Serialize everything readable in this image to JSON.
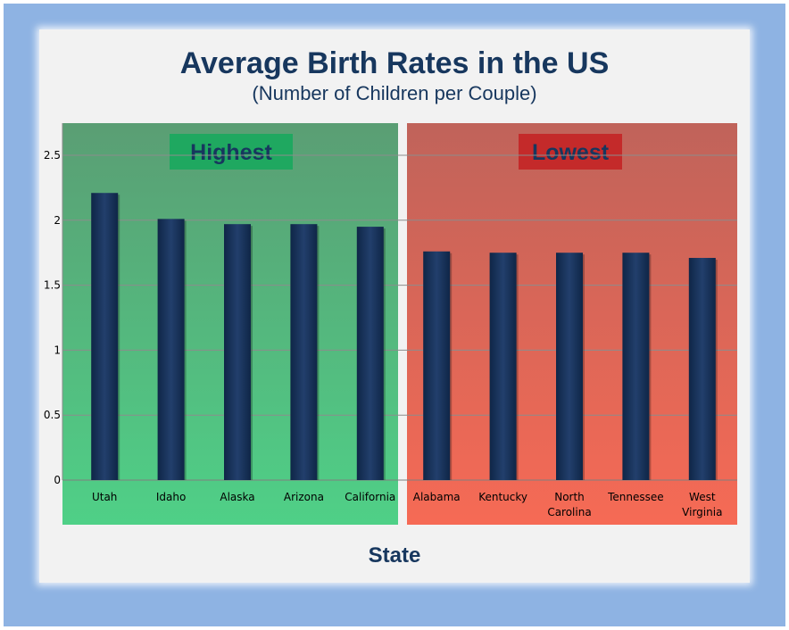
{
  "title": "Average Birth Rates in the US",
  "subtitle": "(Number of Children per Couple)",
  "chart_data": {
    "type": "bar",
    "title": "Average Birth Rates in the US",
    "subtitle": "(Number of Children per Couple)",
    "xlabel": "State",
    "ylabel": "",
    "ylim": [
      0,
      2.5
    ],
    "yticks": [
      "0",
      "0.5",
      "1",
      "1.5",
      "2",
      "2.5"
    ],
    "grid": true,
    "categories": [
      "Utah",
      "Idaho",
      "Alaska",
      "Arizona",
      "California",
      "Alabama",
      "Kentucky",
      "North Carolina",
      "Tennessee",
      "West Virginia"
    ],
    "category_lines": [
      [
        "Utah"
      ],
      [
        "Idaho"
      ],
      [
        "Alaska"
      ],
      [
        "Arizona"
      ],
      [
        "California"
      ],
      [
        "Alabama"
      ],
      [
        "Kentucky"
      ],
      [
        "North",
        "Carolina"
      ],
      [
        "Tennessee"
      ],
      [
        "West",
        "Virginia"
      ]
    ],
    "values": [
      2.21,
      2.01,
      1.97,
      1.97,
      1.95,
      1.76,
      1.75,
      1.75,
      1.75,
      1.71
    ],
    "groups": [
      {
        "label": "Highest",
        "start": 0,
        "end": 4,
        "color": "#4fb87a"
      },
      {
        "label": "Lowest",
        "start": 5,
        "end": 9,
        "color": "#e8705a"
      }
    ],
    "bar_color": "#1b365f"
  }
}
